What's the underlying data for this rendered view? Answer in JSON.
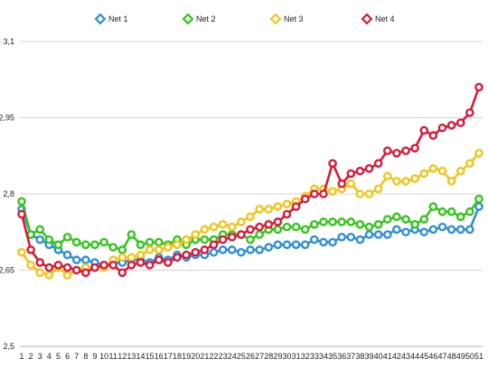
{
  "chart_data": {
    "type": "line",
    "title": "",
    "xlabel": "",
    "ylabel": "",
    "x": [
      1,
      2,
      3,
      4,
      5,
      6,
      7,
      8,
      9,
      10,
      11,
      12,
      13,
      14,
      15,
      16,
      17,
      18,
      19,
      20,
      21,
      22,
      23,
      24,
      25,
      26,
      27,
      28,
      29,
      30,
      31,
      32,
      33,
      34,
      35,
      36,
      37,
      38,
      39,
      40,
      41,
      42,
      43,
      44,
      45,
      46,
      47,
      48,
      49,
      50,
      51
    ],
    "ylim": [
      2.5,
      3.1
    ],
    "yticks": [
      "2,5",
      "2,65",
      "2,8",
      "2,95",
      "3,1"
    ],
    "ytick_values": [
      2.5,
      2.65,
      2.8,
      2.95,
      3.1
    ],
    "grid": "horizontal",
    "legend_position": "top",
    "series": [
      {
        "name": "Net 1",
        "color": "#2f8fd8",
        "values": [
          2.77,
          2.72,
          2.71,
          2.7,
          2.69,
          2.68,
          2.67,
          2.67,
          2.665,
          2.66,
          2.665,
          2.665,
          2.67,
          2.67,
          2.665,
          2.675,
          2.67,
          2.68,
          2.675,
          2.68,
          2.68,
          2.685,
          2.69,
          2.69,
          2.685,
          2.69,
          2.69,
          2.695,
          2.7,
          2.7,
          2.7,
          2.7,
          2.71,
          2.705,
          2.705,
          2.715,
          2.715,
          2.71,
          2.72,
          2.72,
          2.72,
          2.73,
          2.725,
          2.73,
          2.725,
          2.73,
          2.735,
          2.73,
          2.73,
          2.73,
          2.775
        ]
      },
      {
        "name": "Net 2",
        "color": "#33c61c",
        "values": [
          2.785,
          2.72,
          2.73,
          2.71,
          2.7,
          2.715,
          2.705,
          2.7,
          2.7,
          2.705,
          2.695,
          2.69,
          2.72,
          2.7,
          2.705,
          2.705,
          2.7,
          2.71,
          2.7,
          2.71,
          2.71,
          2.71,
          2.72,
          2.72,
          2.72,
          2.71,
          2.72,
          2.73,
          2.73,
          2.735,
          2.735,
          2.73,
          2.74,
          2.745,
          2.745,
          2.745,
          2.745,
          2.74,
          2.735,
          2.74,
          2.75,
          2.755,
          2.75,
          2.74,
          2.75,
          2.775,
          2.765,
          2.765,
          2.755,
          2.765,
          2.79
        ]
      },
      {
        "name": "Net 3",
        "color": "#f2c51a",
        "values": [
          2.685,
          2.66,
          2.645,
          2.64,
          2.655,
          2.64,
          2.65,
          2.655,
          2.655,
          2.655,
          2.67,
          2.675,
          2.675,
          2.68,
          2.69,
          2.69,
          2.695,
          2.7,
          2.71,
          2.72,
          2.73,
          2.735,
          2.74,
          2.735,
          2.745,
          2.755,
          2.77,
          2.77,
          2.775,
          2.78,
          2.785,
          2.795,
          2.81,
          2.81,
          2.805,
          2.81,
          2.82,
          2.8,
          2.8,
          2.81,
          2.835,
          2.825,
          2.825,
          2.83,
          2.84,
          2.85,
          2.845,
          2.825,
          2.845,
          2.86,
          2.88
        ]
      },
      {
        "name": "Net 4",
        "color": "#d81b3a",
        "values": [
          2.76,
          2.69,
          2.665,
          2.655,
          2.66,
          2.655,
          2.65,
          2.645,
          2.655,
          2.66,
          2.66,
          2.645,
          2.66,
          2.665,
          2.66,
          2.67,
          2.665,
          2.675,
          2.68,
          2.685,
          2.69,
          2.7,
          2.71,
          2.715,
          2.72,
          2.73,
          2.735,
          2.74,
          2.745,
          2.76,
          2.775,
          2.79,
          2.8,
          2.8,
          2.86,
          2.82,
          2.84,
          2.845,
          2.85,
          2.86,
          2.885,
          2.88,
          2.885,
          2.89,
          2.925,
          2.915,
          2.93,
          2.935,
          2.94,
          2.96,
          3.01
        ]
      }
    ]
  }
}
